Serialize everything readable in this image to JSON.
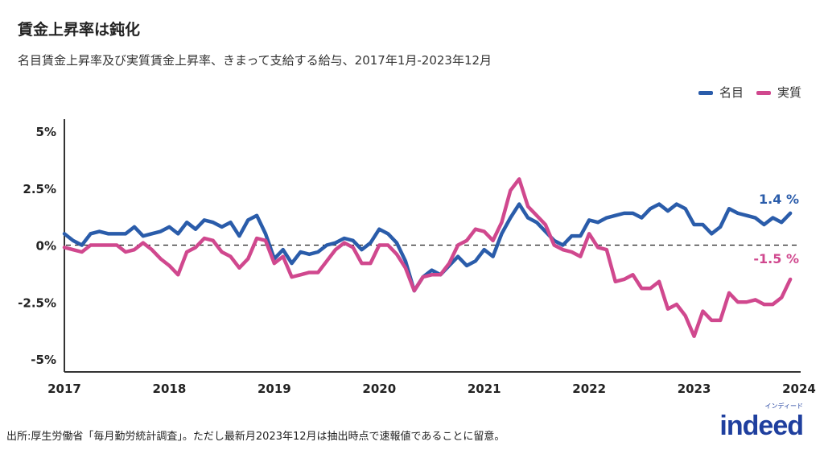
{
  "title": "賃金上昇率は鈍化",
  "subtitle": "名目賃金上昇率及び実質賃金上昇率、きまって支給する給与、2017年1月-2023年12月",
  "source": "出所:厚生労働省「毎月勤労統計調査」。ただし最新月2023年12月は抽出時点で速報値であることに留意。",
  "logo": {
    "word": "indeed",
    "kana": "インディード"
  },
  "chart_data": {
    "type": "line",
    "x_start": "2017-01",
    "x_end": "2023-12",
    "frequency": "monthly",
    "xticks": [
      "2017",
      "2018",
      "2019",
      "2020",
      "2021",
      "2022",
      "2023",
      "2024"
    ],
    "yticks": [
      {
        "v": 5,
        "label": "5%"
      },
      {
        "v": 2.5,
        "label": "2.5%"
      },
      {
        "v": 0,
        "label": "0%"
      },
      {
        "v": -2.5,
        "label": "-2.5%"
      },
      {
        "v": -5,
        "label": "-5%"
      }
    ],
    "ylim": [
      -5,
      5
    ],
    "zero_line": "dashed",
    "legend_position": "top-right",
    "series": [
      {
        "name": "名目",
        "color": "#2a5caa",
        "end_label": "1.4 %",
        "values": [
          0.5,
          0.2,
          0.0,
          0.5,
          0.6,
          0.5,
          0.5,
          0.5,
          0.8,
          0.4,
          0.5,
          0.6,
          0.8,
          0.5,
          1.0,
          0.7,
          1.1,
          1.0,
          0.8,
          1.0,
          0.4,
          1.1,
          1.3,
          0.5,
          -0.6,
          -0.2,
          -0.8,
          -0.3,
          -0.4,
          -0.3,
          0.0,
          0.1,
          0.3,
          0.2,
          -0.2,
          0.1,
          0.7,
          0.5,
          0.1,
          -0.7,
          -2.0,
          -1.4,
          -1.1,
          -1.3,
          -0.9,
          -0.5,
          -0.9,
          -0.7,
          -0.2,
          -0.5,
          0.5,
          1.2,
          1.8,
          1.2,
          1.0,
          0.6,
          0.2,
          0.0,
          0.4,
          0.4,
          1.1,
          1.0,
          1.2,
          1.3,
          1.4,
          1.4,
          1.2,
          1.6,
          1.8,
          1.5,
          1.8,
          1.6,
          0.9,
          0.9,
          0.5,
          0.8,
          1.6,
          1.4,
          1.3,
          1.2,
          0.9,
          1.2,
          1.0,
          1.4
        ]
      },
      {
        "name": "実質",
        "color": "#d0488e",
        "end_label": "-1.5 %",
        "values": [
          -0.1,
          -0.2,
          -0.3,
          0.0,
          0.0,
          0.0,
          0.0,
          -0.3,
          -0.2,
          0.1,
          -0.2,
          -0.6,
          -0.9,
          -1.3,
          -0.3,
          -0.1,
          0.3,
          0.2,
          -0.3,
          -0.5,
          -1.0,
          -0.6,
          0.3,
          0.2,
          -0.8,
          -0.5,
          -1.4,
          -1.3,
          -1.2,
          -1.2,
          -0.7,
          -0.2,
          0.1,
          -0.1,
          -0.8,
          -0.8,
          0.0,
          0.0,
          -0.4,
          -1.0,
          -2.0,
          -1.4,
          -1.3,
          -1.3,
          -0.8,
          0.0,
          0.2,
          0.7,
          0.6,
          0.2,
          1.0,
          2.4,
          2.9,
          1.7,
          1.3,
          0.9,
          0.0,
          -0.2,
          -0.3,
          -0.5,
          0.5,
          -0.1,
          -0.2,
          -1.6,
          -1.5,
          -1.3,
          -1.9,
          -1.9,
          -1.6,
          -2.8,
          -2.6,
          -3.1,
          -4.0,
          -2.9,
          -3.3,
          -3.3,
          -2.1,
          -2.5,
          -2.5,
          -2.4,
          -2.6,
          -2.6,
          -2.3,
          -1.5
        ]
      }
    ]
  }
}
